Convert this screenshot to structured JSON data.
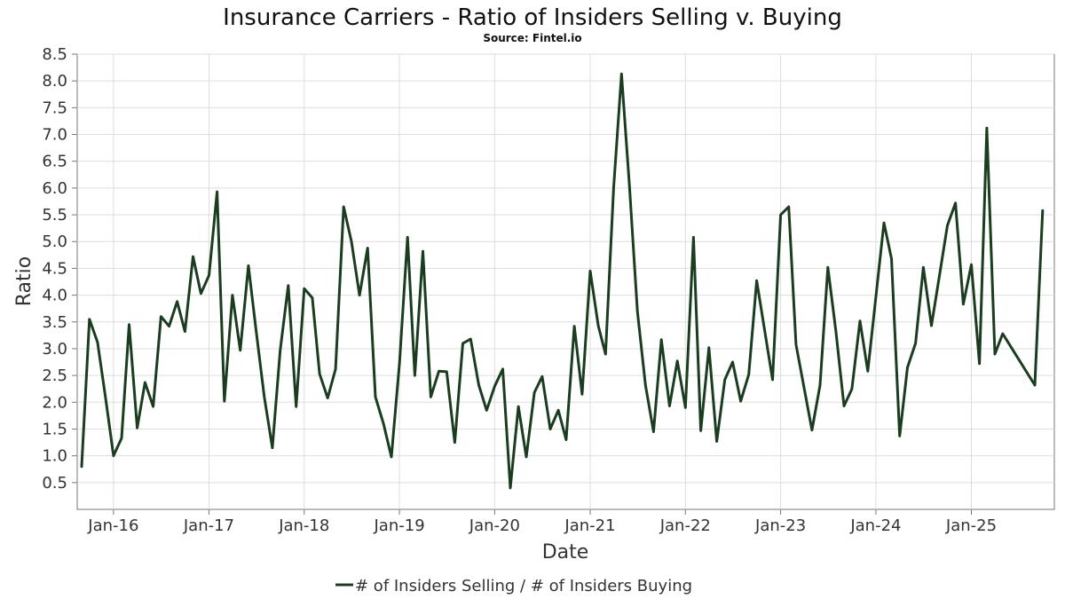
{
  "chart_data": {
    "type": "line",
    "title": "Insurance Carriers - Ratio of Insiders Selling v. Buying",
    "subtitle": "Source: Fintel.io",
    "xlabel": "Date",
    "ylabel": "Ratio",
    "ylim": [
      0,
      8.5
    ],
    "xlim": [
      "2015-08-15",
      "2025-11-15"
    ],
    "grid": true,
    "legend_position": "bottom-center",
    "y_ticks": [
      "0.5",
      "1.0",
      "1.5",
      "2.0",
      "2.5",
      "3.0",
      "3.5",
      "4.0",
      "4.5",
      "5.0",
      "5.5",
      "6.0",
      "6.5",
      "7.0",
      "7.5",
      "8.0",
      "8.5"
    ],
    "x_ticks": [
      {
        "label": "Jan-16",
        "date": "2016-01-01"
      },
      {
        "label": "Jan-17",
        "date": "2017-01-01"
      },
      {
        "label": "Jan-18",
        "date": "2018-01-01"
      },
      {
        "label": "Jan-19",
        "date": "2019-01-01"
      },
      {
        "label": "Jan-20",
        "date": "2020-01-01"
      },
      {
        "label": "Jan-21",
        "date": "2021-01-01"
      },
      {
        "label": "Jan-22",
        "date": "2022-01-01"
      },
      {
        "label": "Jan-23",
        "date": "2023-01-01"
      },
      {
        "label": "Jan-24",
        "date": "2024-01-01"
      },
      {
        "label": "Jan-25",
        "date": "2025-01-01"
      }
    ],
    "colors": {
      "series": "#1a3d1f",
      "grid": "#dddddd",
      "frame": "#777777"
    },
    "series": [
      {
        "name": "# of Insiders Selling / # of Insiders Buying",
        "x": [
          "2015-09-01",
          "2015-10-01",
          "2015-11-01",
          "2015-12-01",
          "2016-01-01",
          "2016-02-01",
          "2016-03-01",
          "2016-04-01",
          "2016-05-01",
          "2016-06-01",
          "2016-07-01",
          "2016-08-01",
          "2016-09-01",
          "2016-10-01",
          "2016-11-01",
          "2016-12-01",
          "2017-01-01",
          "2017-02-01",
          "2017-03-01",
          "2017-04-01",
          "2017-05-01",
          "2017-06-01",
          "2017-07-01",
          "2017-08-01",
          "2017-09-01",
          "2017-10-01",
          "2017-11-01",
          "2017-12-01",
          "2018-01-01",
          "2018-02-01",
          "2018-03-01",
          "2018-04-01",
          "2018-05-01",
          "2018-06-01",
          "2018-07-01",
          "2018-08-01",
          "2018-09-01",
          "2018-10-01",
          "2018-11-01",
          "2018-12-01",
          "2019-01-01",
          "2019-02-01",
          "2019-03-01",
          "2019-04-01",
          "2019-05-01",
          "2019-06-01",
          "2019-07-01",
          "2019-08-01",
          "2019-09-01",
          "2019-10-01",
          "2019-11-01",
          "2019-12-01",
          "2020-01-01",
          "2020-02-01",
          "2020-03-01",
          "2020-04-01",
          "2020-05-01",
          "2020-06-01",
          "2020-07-01",
          "2020-08-01",
          "2020-09-01",
          "2020-10-01",
          "2020-11-01",
          "2020-12-01",
          "2021-01-01",
          "2021-02-01",
          "2021-03-01",
          "2021-04-01",
          "2021-05-01",
          "2021-06-01",
          "2021-07-01",
          "2021-08-01",
          "2021-09-01",
          "2021-10-01",
          "2021-11-01",
          "2021-12-01",
          "2022-01-01",
          "2022-02-01",
          "2022-03-01",
          "2022-04-01",
          "2022-05-01",
          "2022-06-01",
          "2022-07-01",
          "2022-08-01",
          "2022-09-01",
          "2022-10-01",
          "2022-12-01",
          "2023-01-01",
          "2023-02-01",
          "2023-03-01",
          "2023-05-01",
          "2023-06-01",
          "2023-07-01",
          "2023-08-01",
          "2023-09-01",
          "2023-10-01",
          "2023-11-01",
          "2023-12-01",
          "2024-02-01",
          "2024-03-01",
          "2024-04-01",
          "2024-05-01",
          "2024-06-01",
          "2024-07-01",
          "2024-08-01",
          "2024-09-01",
          "2024-10-01",
          "2024-11-01",
          "2024-12-01",
          "2025-01-01",
          "2025-02-01",
          "2025-03-01",
          "2025-04-01",
          "2025-05-01",
          "2025-09-01",
          "2025-10-01"
        ],
        "y": [
          0.8,
          3.55,
          3.12,
          2.1,
          1.0,
          1.33,
          3.45,
          1.52,
          2.37,
          1.92,
          3.6,
          3.42,
          3.88,
          3.32,
          4.72,
          4.03,
          4.37,
          5.93,
          2.02,
          4.0,
          2.97,
          4.55,
          3.32,
          2.1,
          1.15,
          2.97,
          4.18,
          1.92,
          4.12,
          3.95,
          2.53,
          2.08,
          2.62,
          5.65,
          5.0,
          4.0,
          4.88,
          2.1,
          1.6,
          0.98,
          2.72,
          5.08,
          2.5,
          4.82,
          2.1,
          2.58,
          2.57,
          1.25,
          3.1,
          3.18,
          2.32,
          1.85,
          2.3,
          2.62,
          0.4,
          1.92,
          0.98,
          2.18,
          2.48,
          1.5,
          1.85,
          1.3,
          3.42,
          2.15,
          4.45,
          3.43,
          2.9,
          6.0,
          8.13,
          6.0,
          3.7,
          2.32,
          1.45,
          3.17,
          1.93,
          2.77,
          1.9,
          5.08,
          1.47,
          3.02,
          1.27,
          2.42,
          2.75,
          2.02,
          2.52,
          4.27,
          2.42,
          5.5,
          5.65,
          3.08,
          1.48,
          2.32,
          4.52,
          3.32,
          1.93,
          2.25,
          3.52,
          2.58,
          5.35,
          4.68,
          1.37,
          2.65,
          3.1,
          4.52,
          3.43,
          4.37,
          5.3,
          5.72,
          3.83,
          4.57,
          2.72,
          7.12,
          2.9,
          3.28,
          2.32,
          5.58
        ]
      }
    ]
  }
}
